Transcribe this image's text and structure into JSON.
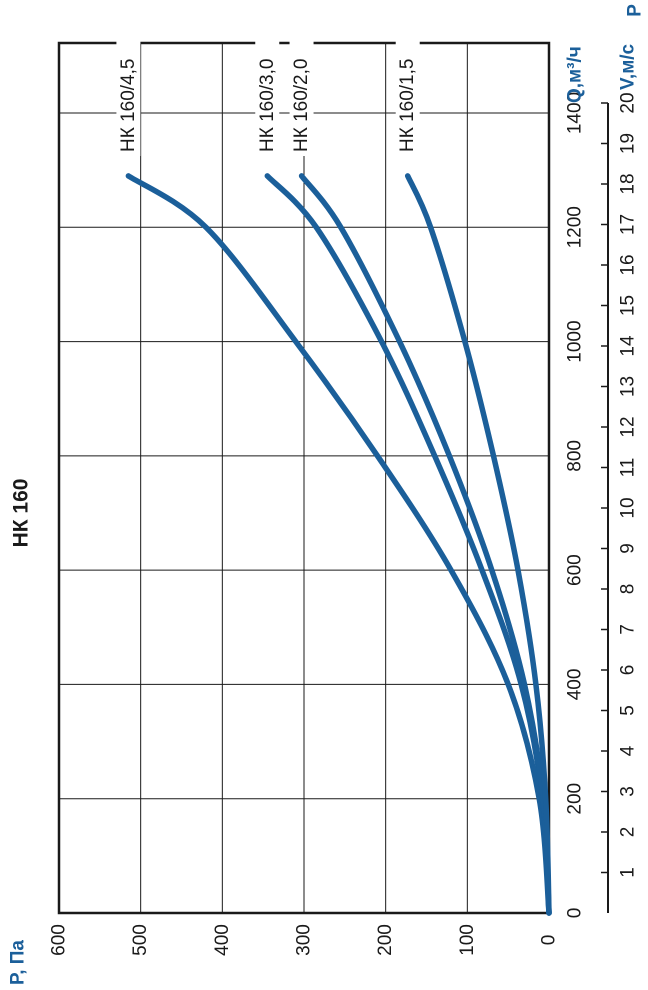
{
  "chart_data": {
    "type": "line",
    "title": "НК 160",
    "xlabel": "Q,м³/ч",
    "ylabel": "P, Па",
    "secondary_xlabel": "V,м/с",
    "corner_label": "P",
    "xlim": [
      0,
      1400
    ],
    "ylim": [
      0,
      600
    ],
    "x_ticks": [
      0,
      200,
      400,
      600,
      800,
      1000,
      1200,
      1400
    ],
    "y_ticks": [
      0,
      100,
      200,
      300,
      400,
      500,
      600
    ],
    "v_ticks": [
      1,
      2,
      3,
      4,
      5,
      6,
      7,
      8,
      9,
      10,
      11,
      12,
      13,
      14,
      15,
      16,
      17,
      18,
      19,
      20
    ],
    "grid": true,
    "series": [
      {
        "name": "НК 160/4,5",
        "points": [
          [
            0,
            0
          ],
          [
            200,
            12
          ],
          [
            400,
            50
          ],
          [
            600,
            120
          ],
          [
            800,
            210
          ],
          [
            1000,
            310
          ],
          [
            1200,
            420
          ],
          [
            1290,
            515
          ]
        ]
      },
      {
        "name": "НК 160/3,0",
        "points": [
          [
            0,
            0
          ],
          [
            200,
            8
          ],
          [
            400,
            34
          ],
          [
            600,
            82
          ],
          [
            800,
            140
          ],
          [
            1000,
            205
          ],
          [
            1200,
            285
          ],
          [
            1290,
            345
          ]
        ]
      },
      {
        "name": "НК 160/2,0",
        "points": [
          [
            0,
            0
          ],
          [
            200,
            7
          ],
          [
            400,
            30
          ],
          [
            600,
            70
          ],
          [
            800,
            122
          ],
          [
            1000,
            183
          ],
          [
            1200,
            255
          ],
          [
            1290,
            303
          ]
        ]
      },
      {
        "name": "НК 160/1,5",
        "points": [
          [
            0,
            0
          ],
          [
            200,
            4
          ],
          [
            400,
            16
          ],
          [
            600,
            38
          ],
          [
            800,
            68
          ],
          [
            1000,
            103
          ],
          [
            1200,
            145
          ],
          [
            1290,
            173
          ]
        ]
      }
    ],
    "colors": {
      "series": "#1b5f9a",
      "axis_label": "#1b5f9a"
    }
  }
}
